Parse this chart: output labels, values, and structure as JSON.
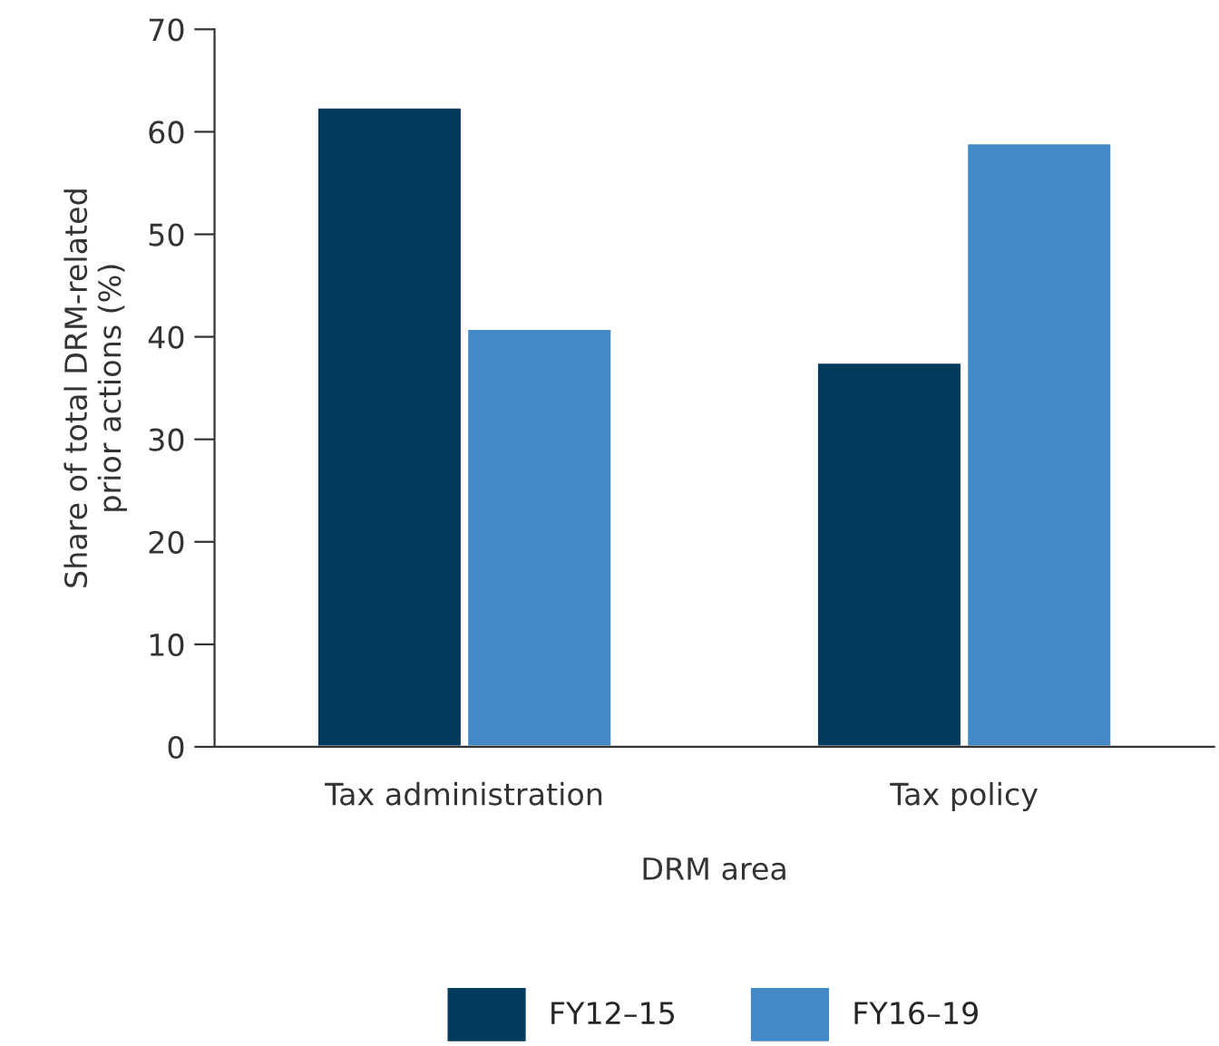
{
  "chart_data": {
    "type": "bar",
    "xlabel": "DRM area",
    "ylabel": "Share of total DRM-related\nprior actions (%)",
    "categories": [
      "Tax administration",
      "Tax policy"
    ],
    "series": [
      {
        "name": "FY12–15",
        "color": "#003a5d",
        "values": [
          62.4,
          37.5
        ]
      },
      {
        "name": "FY16–19",
        "color": "#4389c8",
        "values": [
          40.8,
          58.9
        ]
      }
    ],
    "ylim": [
      0,
      70
    ],
    "yticks": [
      0,
      10,
      20,
      30,
      40,
      50,
      60,
      70
    ],
    "legend": "bottom",
    "grid": false
  }
}
